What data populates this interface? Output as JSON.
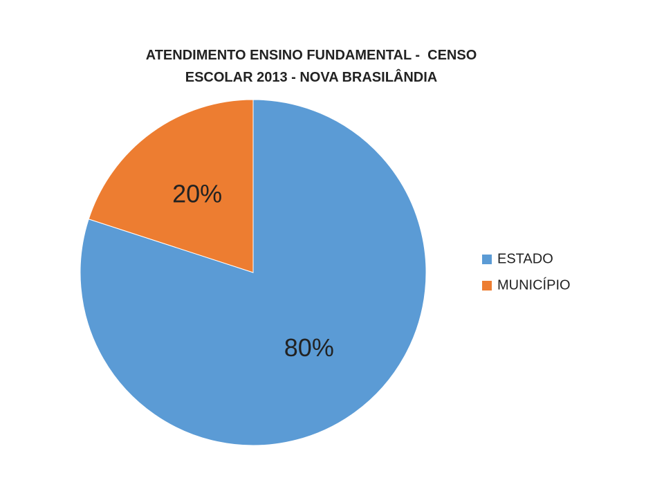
{
  "chart_data": {
    "type": "pie",
    "title": "ATENDIMENTO ENSINO FUNDAMENTAL -  CENSO ESCOLAR 2013 - NOVA BRASILÂNDIA",
    "categories": [
      "ESTADO",
      "MUNICÍPIO"
    ],
    "values": [
      80,
      20
    ],
    "value_labels": [
      "80%",
      "20%"
    ],
    "colors": [
      "#5b9bd5",
      "#ed7d31"
    ],
    "legend": "right"
  }
}
